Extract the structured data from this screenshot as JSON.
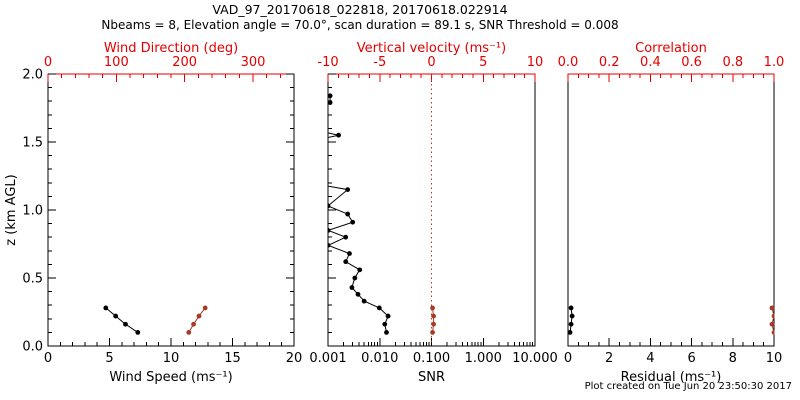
{
  "header": {
    "title": "VAD_97_20170618_022818, 20170618.022914",
    "subtitle": "Nbeams = 8, Elevation angle = 70.0°, scan duration = 89.1 s, SNR Threshold = 0.008"
  },
  "footer": {
    "created_note": "Plot created on Tue Jun 20 23:50:30 2017"
  },
  "colors": {
    "axis_red": "#e40000",
    "data_red": "#a83b28",
    "ref_red": "#c03424",
    "black": "#000000",
    "background": "#ffffff"
  },
  "chart_data": {
    "type": "line",
    "title": "VAD_97_20170618_022818, 20170618.022914",
    "y_axis": {
      "label": "z (km AGL)",
      "range": [
        0,
        2
      ],
      "major_ticks": [
        0.0,
        0.5,
        1.0,
        1.5,
        2.0
      ],
      "tick_labels": [
        "0.0",
        "0.5",
        "1.0",
        "1.5",
        "2.0"
      ],
      "minor_step": 0.1
    },
    "layout": {
      "panel_rects": [
        [
          48,
          74,
          246,
          272
        ],
        [
          328,
          74,
          207,
          272
        ],
        [
          568,
          74,
          206,
          272
        ]
      ],
      "grid": false,
      "legend": "none"
    },
    "panels": [
      {
        "name": "wind-panel",
        "y_tick_edges": "both",
        "bottom_axis": {
          "label": "Wind Speed (ms⁻¹)",
          "scale": "linear",
          "range": [
            0,
            20
          ],
          "major_ticks": [
            0,
            5,
            10,
            15,
            20
          ],
          "tick_labels": [
            "0",
            "5",
            "10",
            "15",
            "20"
          ],
          "minor_step": 1,
          "color": "black"
        },
        "top_axis": {
          "label": "Wind Direction (deg)",
          "scale": "linear",
          "range": [
            0,
            360
          ],
          "major_ticks": [
            0,
            100,
            200,
            300
          ],
          "tick_labels": [
            "0",
            "100",
            "200",
            "300"
          ],
          "minor_step": 20,
          "color": "red"
        },
        "series": [
          {
            "name": "wind-speed",
            "axis": "bottom",
            "color": "black",
            "points": [
              [
                7.3,
                0.1
              ],
              [
                6.3,
                0.16
              ],
              [
                5.5,
                0.22
              ],
              [
                4.7,
                0.28
              ]
            ]
          },
          {
            "name": "wind-direction",
            "axis": "top",
            "color": "red",
            "points": [
              [
                206,
                0.1
              ],
              [
                213,
                0.16
              ],
              [
                221,
                0.22
              ],
              [
                230,
                0.28
              ]
            ]
          }
        ]
      },
      {
        "name": "snr-panel",
        "y_tick_edges": "left",
        "bottom_axis": {
          "label": "SNR",
          "scale": "log",
          "range": [
            0.001,
            10
          ],
          "major_ticks": [
            0.001,
            0.01,
            0.1,
            1,
            10
          ],
          "tick_labels": [
            "0.001",
            "0.010",
            "0.100",
            "1.000",
            "10.000"
          ],
          "color": "black"
        },
        "top_axis": {
          "label": "Vertical velocity (ms⁻¹)",
          "scale": "linear",
          "range": [
            -10,
            10
          ],
          "major_ticks": [
            -10,
            -5,
            0,
            5,
            10
          ],
          "tick_labels": [
            "-10",
            "-5",
            "0",
            "5",
            "10"
          ],
          "minor_step": 1,
          "color": "red"
        },
        "ref_line": {
          "axis": "top",
          "value": 0,
          "style": "dotted",
          "color": "ref_red"
        },
        "series": [
          {
            "name": "snr-profile",
            "axis": "bottom",
            "color": "black",
            "points": [
              [
                0.0135,
                0.1
              ],
              [
                0.0125,
                0.16
              ],
              [
                0.0145,
                0.22
              ],
              [
                0.0098,
                0.28
              ],
              [
                0.005,
                0.33
              ],
              [
                0.0038,
                0.38
              ],
              [
                0.0029,
                0.43
              ],
              [
                0.0033,
                0.5
              ],
              [
                0.0041,
                0.56
              ],
              [
                0.0022,
                0.62
              ],
              [
                0.0026,
                0.68
              ],
              [
                0.001,
                0.74
              ],
              [
                0.0022,
                0.8
              ],
              [
                0.001,
                0.85
              ],
              [
                0.003,
                0.91
              ],
              [
                0.0024,
                0.97
              ],
              [
                0.001,
                1.03
              ],
              [
                0.0024,
                1.15
              ],
              [
                0.0003,
                1.21
              ],
              [
                0.0003,
                1.49
              ],
              [
                0.0016,
                1.55
              ],
              [
                0.0003,
                1.61
              ],
              [
                0.0003,
                1.73
              ],
              [
                0.0011,
                1.79
              ],
              [
                0.0011,
                1.84
              ]
            ]
          },
          {
            "name": "vertical-velocity",
            "axis": "top",
            "color": "red",
            "points": [
              [
                0.1,
                0.1
              ],
              [
                0.2,
                0.16
              ],
              [
                0.2,
                0.22
              ],
              [
                0.1,
                0.28
              ]
            ]
          }
        ]
      },
      {
        "name": "residual-panel",
        "y_tick_edges": "none",
        "bottom_axis": {
          "label": "Residual (ms⁻¹)",
          "scale": "linear",
          "range": [
            0,
            10
          ],
          "major_ticks": [
            0,
            2,
            4,
            6,
            8,
            10
          ],
          "tick_labels": [
            "0",
            "2",
            "4",
            "6",
            "8",
            "10"
          ],
          "minor_step": 0.5,
          "color": "black"
        },
        "top_axis": {
          "label": "Correlation",
          "scale": "linear",
          "range": [
            0,
            1
          ],
          "major_ticks": [
            0,
            0.2,
            0.4,
            0.6,
            0.8,
            1.0
          ],
          "tick_labels": [
            "0.0",
            "0.2",
            "0.4",
            "0.6",
            "0.8",
            "1.0"
          ],
          "minor_step": 0.05,
          "color": "red"
        },
        "series": [
          {
            "name": "residual",
            "axis": "bottom",
            "color": "black",
            "points": [
              [
                0.1,
                0.1
              ],
              [
                0.15,
                0.16
              ],
              [
                0.2,
                0.22
              ],
              [
                0.15,
                0.28
              ]
            ]
          },
          {
            "name": "correlation",
            "axis": "top",
            "color": "red",
            "points": [
              [
                1.0,
                0.1
              ],
              [
                0.99,
                0.16
              ],
              [
                1.0,
                0.22
              ],
              [
                0.99,
                0.28
              ]
            ]
          }
        ]
      }
    ]
  }
}
